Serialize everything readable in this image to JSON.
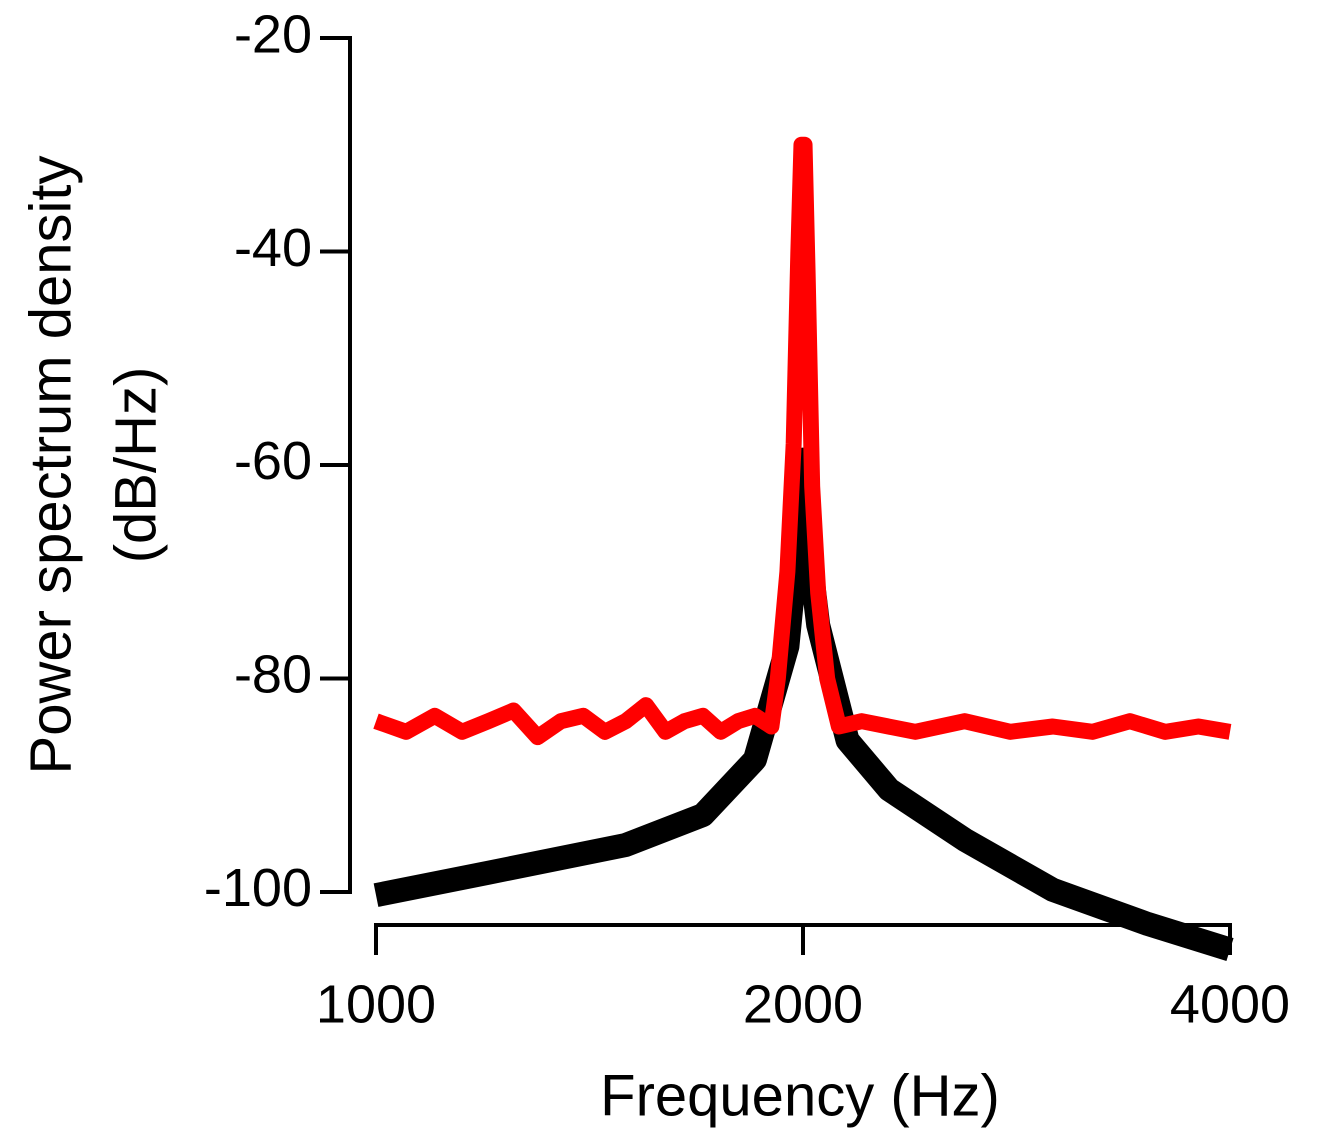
{
  "chart_data": {
    "type": "line",
    "xlabel": "Frequency (Hz)",
    "ylabel": [
      "Power spectrum density",
      "(dB/Hz)"
    ],
    "xscale": "log",
    "xlim": [
      1000,
      4000
    ],
    "xticks": [
      1000,
      2000,
      4000
    ],
    "ylim": [
      -106,
      -20
    ],
    "yticks": [
      -20,
      -40,
      -60,
      -80,
      -100
    ],
    "grid": false,
    "series": [
      {
        "color": "#000000",
        "x": [
          1000,
          1200,
          1500,
          1700,
          1850,
          1950,
          1980,
          2000,
          2020,
          2050,
          2150,
          2300,
          2600,
          3000,
          3500,
          4000
        ],
        "values": [
          -100.3,
          -98.2,
          -95.6,
          -92.8,
          -87.6,
          -77,
          -68,
          -59.5,
          -68,
          -75,
          -85.8,
          -90.4,
          -95.1,
          -99.8,
          -103,
          -105.4
        ]
      },
      {
        "color": "#ff0000",
        "x": [
          1000,
          1050,
          1100,
          1150,
          1200,
          1250,
          1300,
          1350,
          1400,
          1450,
          1500,
          1550,
          1600,
          1650,
          1700,
          1750,
          1800,
          1850,
          1900,
          1920,
          1950,
          1970,
          1985,
          1995,
          2005,
          2015,
          2030,
          2050,
          2080,
          2120,
          2200,
          2400,
          2600,
          2800,
          3000,
          3200,
          3400,
          3600,
          3800,
          4000
        ],
        "values": [
          -84,
          -85,
          -83.5,
          -85,
          -84,
          -83,
          -85.5,
          -84,
          -83.5,
          -85,
          -84,
          -82.5,
          -85,
          -84,
          -83.5,
          -85,
          -84,
          -83.5,
          -84.5,
          -80,
          -70,
          -58,
          -40,
          -30,
          -30,
          -42,
          -62,
          -72,
          -80,
          -84.5,
          -84,
          -85,
          -84,
          -85,
          -84.5,
          -85,
          -84,
          -85,
          -84.5,
          -85
        ]
      }
    ]
  }
}
